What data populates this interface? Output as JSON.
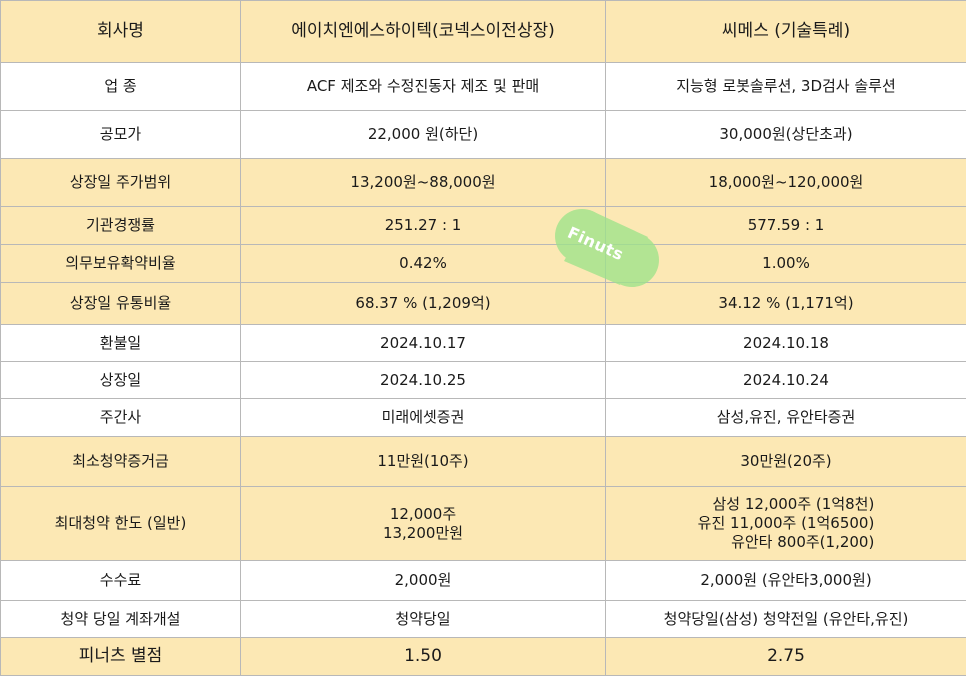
{
  "colors": {
    "highlight": "#fce8b4",
    "border": "#b8b8b8",
    "watermark": "#9ee38a"
  },
  "header": {
    "label": "회사명",
    "company_a": "에이치엔에스하이텍(코넥스이전상장)",
    "company_b": "씨메스 (기술특례)"
  },
  "rows": [
    {
      "label": "업 종",
      "a": "ACF 제조와 수정진동자 제조 및 판매",
      "b": "지능형 로봇솔루션, 3D검사 솔루션"
    },
    {
      "label": "공모가",
      "a": "22,000 원(하단)",
      "b": "30,000원(상단초과)"
    },
    {
      "label": "상장일 주가범위",
      "a": "13,200원~88,000원",
      "b": "18,000원~120,000원"
    },
    {
      "label": "기관경쟁률",
      "a": "251.27 : 1",
      "b": "577.59 : 1"
    },
    {
      "label": "의무보유확약비율",
      "a": "0.42%",
      "b": "1.00%"
    },
    {
      "label": "상장일 유통비율",
      "a": "68.37 % (1,209억)",
      "b": "34.12 % (1,171억)"
    },
    {
      "label": "환불일",
      "a": "2024.10.17",
      "b": "2024.10.18"
    },
    {
      "label": "상장일",
      "a": "2024.10.25",
      "b": "2024.10.24"
    },
    {
      "label": "주간사",
      "a": "미래에셋증권",
      "b": "삼성,유진, 유안타증권"
    },
    {
      "label": "최소청약증거금",
      "a": "11만원(10주)",
      "b": "30만원(20주)"
    },
    {
      "label": "최대청약 한도 (일반)",
      "a_lines": [
        "12,000주",
        "13,200만원"
      ],
      "b_lines": [
        "삼성 12,000주 (1억8천)",
        "유진 11,000주 (1억6500)",
        "유안타 800주(1,200)"
      ]
    },
    {
      "label": "수수료",
      "a": "2,000원",
      "b": "2,000원 (유안타3,000원)"
    },
    {
      "label": "청약 당일 계좌개설",
      "a": "청약당일",
      "b": "청약당일(삼성) 청약전일 (유안타,유진)"
    },
    {
      "label": "피너츠 별점",
      "a": "1.50",
      "b": "2.75"
    }
  ],
  "watermark": {
    "text": "Finuts",
    "icon": "peanut-logo-icon"
  }
}
